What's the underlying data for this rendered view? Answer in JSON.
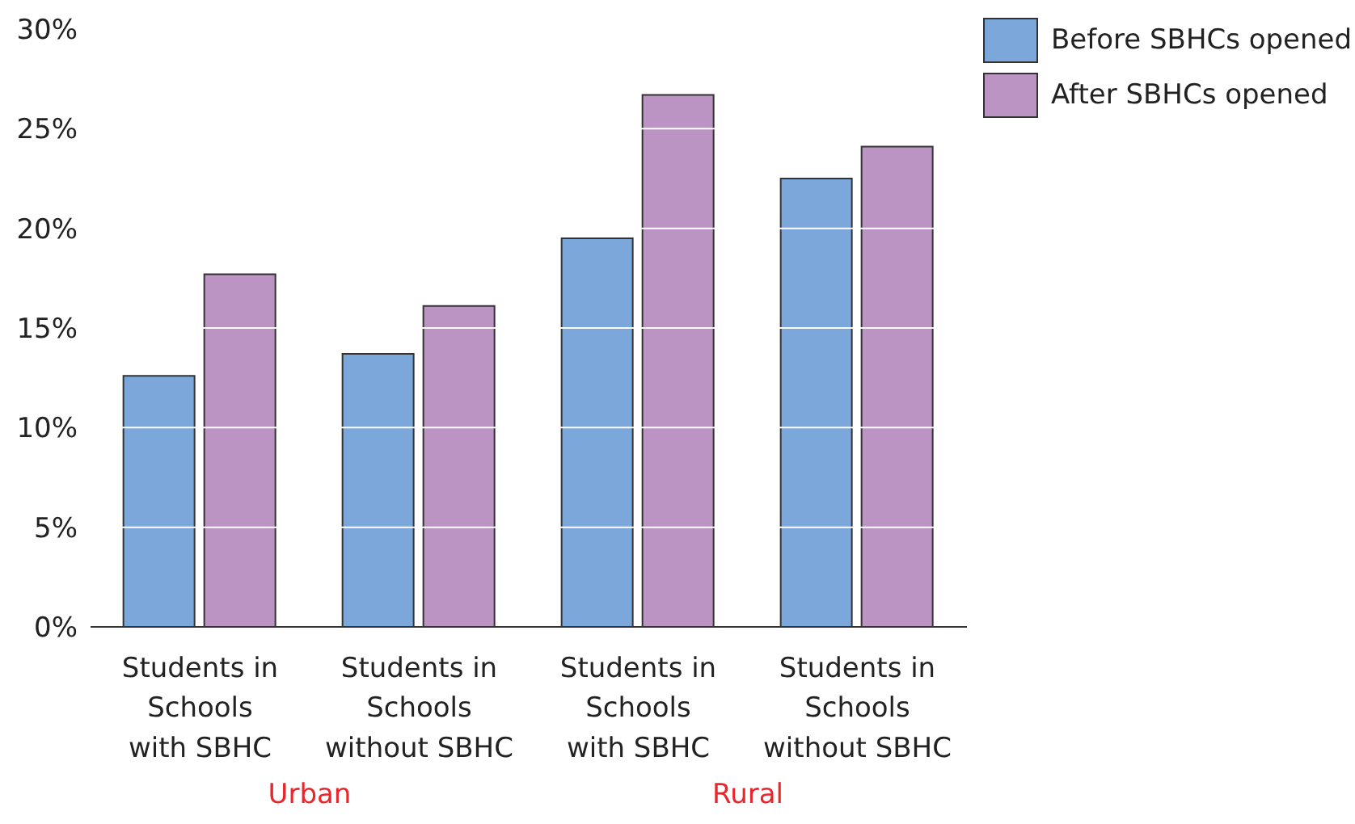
{
  "chart_data": {
    "type": "bar",
    "categories": [
      "Students in\nSchools\nwith SBHC",
      "Students in\nSchools\nwithout SBHC",
      "Students in\nSchools\nwith SBHC",
      "Students in\nSchools\nwithout SBHC"
    ],
    "series": [
      {
        "name": "Before SBHCs opened",
        "color": "#7ba7db",
        "values": [
          12.6,
          13.7,
          19.5,
          22.5
        ]
      },
      {
        "name": "After SBHCs opened",
        "color": "#bb94c4",
        "values": [
          17.7,
          16.1,
          26.7,
          24.1
        ]
      }
    ],
    "ylim": [
      0,
      30
    ],
    "yticks": [
      {
        "value": 0,
        "label": "0%"
      },
      {
        "value": 5,
        "label": "5%"
      },
      {
        "value": 10,
        "label": "10%"
      },
      {
        "value": 15,
        "label": "15%"
      },
      {
        "value": 20,
        "label": "20%"
      },
      {
        "value": 25,
        "label": "25%"
      },
      {
        "value": 30,
        "label": "30%"
      }
    ],
    "grid": "y",
    "legend": "top right",
    "annotations": [
      "Urban",
      "Rural"
    ]
  }
}
